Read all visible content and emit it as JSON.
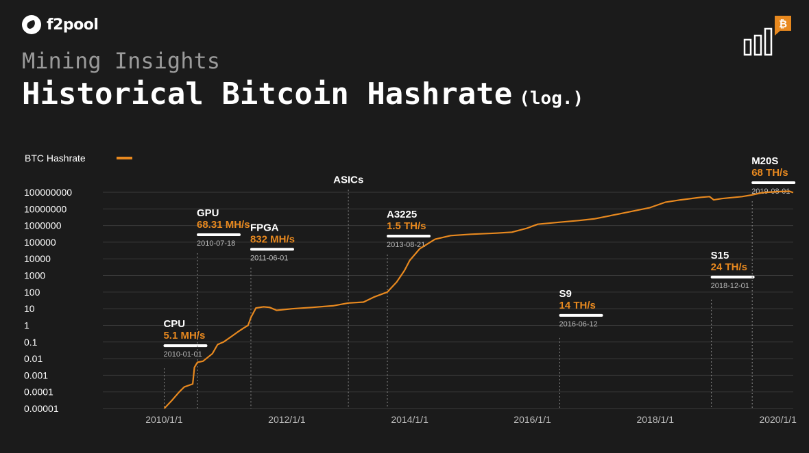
{
  "brand": {
    "name": "f2pool"
  },
  "header": {
    "subtitle": "Mining Insights",
    "title": "Historical Bitcoin Hashrate",
    "title_suffix": "(log.)"
  },
  "colors": {
    "line": "#e8891f",
    "background": "#1b1b1b",
    "grid": "#3b3b3b",
    "text": "#ffffff",
    "muted": "#bdbdbd",
    "badge": "#e8891f"
  },
  "icons": {
    "corner": "bar-chart-bitcoin-icon",
    "brand": "f2pool-logo-icon"
  },
  "chart_data": {
    "type": "line",
    "log_scale_y": true,
    "grid": true,
    "legend_position": "top-left",
    "legend": [
      {
        "name": "BTC Hashrate",
        "color": "#e8891f"
      }
    ],
    "y_ticks": [
      {
        "value": 1e-05,
        "label": "0.00001"
      },
      {
        "value": 0.0001,
        "label": "0.0001"
      },
      {
        "value": 0.001,
        "label": "0.001"
      },
      {
        "value": 0.01,
        "label": "0.01"
      },
      {
        "value": 0.1,
        "label": "0.1"
      },
      {
        "value": 1,
        "label": "1"
      },
      {
        "value": 10,
        "label": "10"
      },
      {
        "value": 100,
        "label": "100"
      },
      {
        "value": 1000,
        "label": "1000"
      },
      {
        "value": 10000,
        "label": "10000"
      },
      {
        "value": 100000,
        "label": "100000"
      },
      {
        "value": 1000000,
        "label": "1000000"
      },
      {
        "value": 10000000,
        "label": "10000000"
      },
      {
        "value": 100000000,
        "label": "100000000"
      }
    ],
    "x_ticks": [
      {
        "date": "2010-01-01",
        "label": "2010/1/1"
      },
      {
        "date": "2012-01-01",
        "label": "2012/1/1"
      },
      {
        "date": "2014-01-01",
        "label": "2014/1/1"
      },
      {
        "date": "2016-01-01",
        "label": "2016/1/1"
      },
      {
        "date": "2018-01-01",
        "label": "2018/1/1"
      },
      {
        "date": "2020-01-01",
        "label": "2020/1/1"
      }
    ],
    "x_range": [
      "2009-01-01",
      "2020-04-01"
    ],
    "y_range": [
      1e-05,
      100000000
    ],
    "series": [
      {
        "name": "BTC Hashrate",
        "points": [
          [
            "2010-01-01",
            1e-05
          ],
          [
            "2010-02-15",
            3e-05
          ],
          [
            "2010-04-01",
            0.0001
          ],
          [
            "2010-05-01",
            0.0002
          ],
          [
            "2010-06-20",
            0.0003
          ],
          [
            "2010-06-30",
            0.003
          ],
          [
            "2010-07-18",
            0.006
          ],
          [
            "2010-08-20",
            0.007
          ],
          [
            "2010-10-15",
            0.02
          ],
          [
            "2010-11-15",
            0.07
          ],
          [
            "2010-12-20",
            0.1
          ],
          [
            "2011-02-01",
            0.2
          ],
          [
            "2011-03-15",
            0.4
          ],
          [
            "2011-04-20",
            0.7
          ],
          [
            "2011-05-15",
            1
          ],
          [
            "2011-06-01",
            3
          ],
          [
            "2011-07-01",
            11
          ],
          [
            "2011-08-15",
            13
          ],
          [
            "2011-09-20",
            12
          ],
          [
            "2011-11-01",
            8
          ],
          [
            "2012-02-01",
            10
          ],
          [
            "2012-06-01",
            12
          ],
          [
            "2012-10-01",
            15
          ],
          [
            "2013-01-01",
            22
          ],
          [
            "2013-04-01",
            25
          ],
          [
            "2013-06-01",
            50
          ],
          [
            "2013-08-21",
            100
          ],
          [
            "2013-10-15",
            400
          ],
          [
            "2013-12-01",
            2000
          ],
          [
            "2014-01-01",
            8000
          ],
          [
            "2014-03-01",
            40000
          ],
          [
            "2014-06-01",
            150000
          ],
          [
            "2014-09-01",
            250000
          ],
          [
            "2015-01-01",
            300000
          ],
          [
            "2015-06-01",
            350000
          ],
          [
            "2015-09-01",
            400000
          ],
          [
            "2015-12-01",
            700000
          ],
          [
            "2016-02-01",
            1200000
          ],
          [
            "2016-06-12",
            1600000
          ],
          [
            "2016-10-01",
            2000000
          ],
          [
            "2017-01-01",
            2500000
          ],
          [
            "2017-06-01",
            5000000
          ],
          [
            "2017-12-01",
            12000000
          ],
          [
            "2018-03-01",
            25000000
          ],
          [
            "2018-06-01",
            35000000
          ],
          [
            "2018-10-01",
            50000000
          ],
          [
            "2018-11-20",
            55000000
          ],
          [
            "2018-12-15",
            35000000
          ],
          [
            "2019-02-01",
            42000000
          ],
          [
            "2019-06-01",
            55000000
          ],
          [
            "2019-08-01",
            70000000
          ],
          [
            "2019-10-01",
            95000000
          ],
          [
            "2020-01-01",
            110000000
          ],
          [
            "2020-03-10",
            115000000
          ],
          [
            "2020-04-01",
            95000000
          ]
        ]
      }
    ],
    "milestones": [
      {
        "name": "CPU",
        "value": "5.1 MH/s",
        "date": "2010-01-01",
        "label_position": "low",
        "label_value": 0.3
      },
      {
        "name": "GPU",
        "value": "68.31  MH/s",
        "date": "2010-07-18",
        "label_position": "high",
        "label_value": 3000000
      },
      {
        "name": "FPGA",
        "value": "832  MH/s",
        "date": "2011-06-01",
        "label_position": "high",
        "label_value": 400000
      },
      {
        "name": "ASICs",
        "value": "",
        "date": "2013-01-01",
        "label_position": "high",
        "label_value": 300000000
      },
      {
        "name": "A3225",
        "value": "1.5  TH/s",
        "date": "2013-08-21",
        "label_position": "high",
        "label_value": 2500000
      },
      {
        "name": "S9",
        "value": "14 TH/s",
        "date": "2016-06-12",
        "label_position": "low",
        "label_value": 20
      },
      {
        "name": "S15",
        "value": "24 TH/s",
        "date": "2018-12-01",
        "label_position": "low",
        "label_value": 4000
      },
      {
        "name": "M20S",
        "value": "68 TH/s",
        "date": "2019-08-01",
        "label_position": "high",
        "label_value": 4000000000
      }
    ]
  }
}
